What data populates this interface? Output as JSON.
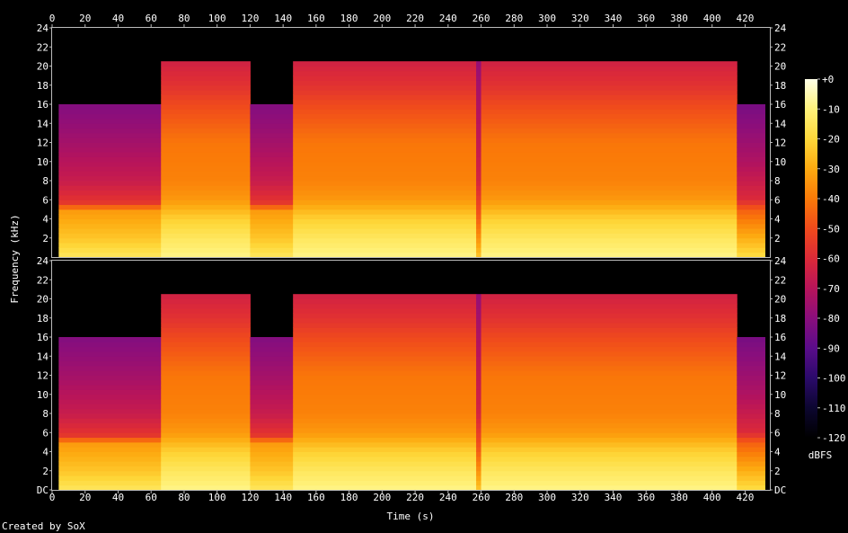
{
  "chart_data": {
    "type": "heatmap",
    "xlabel": "Time (s)",
    "ylabel": "Frequency (kHz)",
    "xlim": [
      0,
      435
    ],
    "ylim_khz": [
      0,
      24
    ],
    "x_ticks": [
      0,
      20,
      40,
      60,
      80,
      100,
      120,
      140,
      160,
      180,
      200,
      220,
      240,
      260,
      280,
      300,
      320,
      340,
      360,
      380,
      400,
      420
    ],
    "y_ticks": [
      "DC",
      "2",
      "4",
      "6",
      "8",
      "10",
      "12",
      "14",
      "16",
      "18",
      "20",
      "22",
      "24"
    ],
    "y_ticks_top_panel": [
      "2",
      "4",
      "6",
      "8",
      "10",
      "12",
      "14",
      "16",
      "18",
      "20",
      "22",
      "24"
    ],
    "channels": 2,
    "colorbar": {
      "unit": "dBFS",
      "range": [
        -120,
        0
      ],
      "ticks": [
        "+0",
        "-10",
        "-20",
        "-30",
        "-40",
        "-50",
        "-60",
        "-70",
        "-80",
        "-90",
        "-100",
        "-110",
        "-120"
      ]
    },
    "segments": [
      {
        "start": 0,
        "end": 4,
        "level": "silence"
      },
      {
        "start": 4,
        "end": 66,
        "level": "quiet",
        "cutoff_khz": 16
      },
      {
        "start": 66,
        "end": 120,
        "level": "loud",
        "cutoff_khz": 20.5
      },
      {
        "start": 120,
        "end": 146,
        "level": "quiet",
        "cutoff_khz": 16
      },
      {
        "start": 146,
        "end": 257,
        "level": "loud",
        "cutoff_khz": 20.5
      },
      {
        "start": 257,
        "end": 260,
        "level": "dip",
        "cutoff_khz": 20.5
      },
      {
        "start": 260,
        "end": 415,
        "level": "loud",
        "cutoff_khz": 20.5
      },
      {
        "start": 415,
        "end": 432,
        "level": "fade",
        "cutoff_khz": 16
      },
      {
        "start": 432,
        "end": 435,
        "level": "silence"
      }
    ]
  },
  "footer": {
    "credit": "Created by SoX"
  },
  "colors": {
    "background": "#000000",
    "palette": [
      "#000000",
      "#0c0630",
      "#2b0a6a",
      "#5a0c8a",
      "#8a0e7c",
      "#b8145a",
      "#dc2a38",
      "#f04a1c",
      "#fa7a08",
      "#fdaa10",
      "#fed83a",
      "#fff27a",
      "#ffffe8"
    ]
  }
}
